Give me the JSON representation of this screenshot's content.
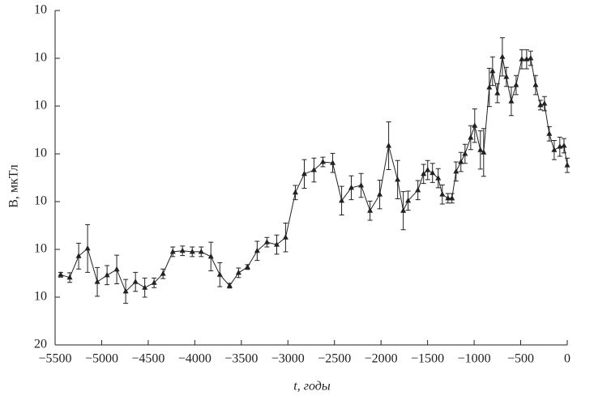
{
  "chart_data": {
    "type": "line",
    "ylabel": "B, мкТл",
    "xlabel": "t, годы",
    "color": "#222222",
    "xlim": [
      -5500,
      0
    ],
    "xticks": [
      {
        "value": -5500,
        "label": "−5500"
      },
      {
        "value": -5000,
        "label": "−5000"
      },
      {
        "value": -4500,
        "label": "−4500"
      },
      {
        "value": -4000,
        "label": "−4000"
      },
      {
        "value": -3500,
        "label": "−3500"
      },
      {
        "value": -3000,
        "label": "−3000"
      },
      {
        "value": -2500,
        "label": "−2500"
      },
      {
        "value": -2000,
        "label": "−2000"
      },
      {
        "value": -1500,
        "label": "−1500"
      },
      {
        "value": -1000,
        "label": "−1000"
      },
      {
        "value": -500,
        "label": "−500"
      },
      0
    ],
    "ylim": [
      20,
      90
    ],
    "yticks": [
      20,
      {
        "value": 30,
        "label": "10"
      },
      {
        "value": 40,
        "label": "10"
      },
      {
        "value": 50,
        "label": "10"
      },
      {
        "value": 60,
        "label": "10"
      },
      {
        "value": 70,
        "label": "10"
      },
      {
        "value": 80,
        "label": "10"
      },
      {
        "value": 90,
        "label": "10"
      }
    ],
    "x": [
      -5440,
      -5343,
      -5247,
      -5151,
      -5047,
      -4942,
      -4838,
      -4742,
      -4637,
      -4537,
      -4437,
      -4341,
      -4236,
      -4132,
      -4027,
      -3931,
      -3827,
      -3731,
      -3626,
      -3530,
      -3434,
      -3330,
      -3225,
      -3120,
      -3025,
      -2920,
      -2824,
      -2720,
      -2624,
      -2519,
      -2423,
      -2319,
      -2214,
      -2118,
      -2014,
      -1918,
      -1822,
      -1761,
      -1709,
      -1604,
      -1543,
      -1499,
      -1447,
      -1386,
      -1342,
      -1281,
      -1238,
      -1194,
      -1142,
      -1098,
      -1037,
      -994,
      -933,
      -898,
      -837,
      -802,
      -750,
      -697,
      -654,
      -601,
      -549,
      -488,
      -436,
      -393,
      -340,
      -288,
      -245,
      -193,
      -140,
      -80,
      -35,
      0
    ],
    "values": [
      34.7,
      34.1,
      38.6,
      40.2,
      33.2,
      34.6,
      35.8,
      31.2,
      33.2,
      32,
      33,
      34.9,
      39.5,
      39.7,
      39.5,
      39.5,
      38.5,
      34.7,
      32.4,
      35.1,
      36.3,
      39.7,
      41.5,
      41,
      42.5,
      51.9,
      55.8,
      56.6,
      58.3,
      58.1,
      50.2,
      52.9,
      53.4,
      48.1,
      51.5,
      61.7,
      54.6,
      48.1,
      50.2,
      52.4,
      55.8,
      56.6,
      56,
      54.9,
      51.5,
      50.7,
      50.7,
      56.3,
      58.3,
      60,
      63.4,
      65.9,
      60.8,
      60.3,
      73.9,
      77.3,
      72.7,
      80.3,
      76.1,
      71,
      74.4,
      79.8,
      79.8,
      80,
      74.4,
      70.2,
      70.5,
      64.2,
      60.8,
      61.5,
      61.7,
      57.6
    ],
    "errors": [
      0.5,
      1,
      2.7,
      5,
      3,
      2,
      3,
      2.5,
      2,
      2,
      1,
      1,
      1,
      1,
      1,
      1,
      3,
      2.5,
      0.5,
      1,
      0.5,
      2,
      1,
      2,
      3,
      1.5,
      3,
      2.5,
      1,
      2,
      3,
      2.5,
      2.5,
      2,
      3,
      5,
      4,
      4,
      2,
      2,
      2,
      2,
      2,
      2,
      2,
      1,
      1,
      2,
      2,
      2,
      2.5,
      3.5,
      4,
      5,
      4,
      3,
      2,
      4,
      2,
      3,
      2,
      2,
      2,
      1.5,
      2,
      1,
      1.5,
      1.5,
      2,
      2,
      1.5,
      1.5
    ]
  }
}
